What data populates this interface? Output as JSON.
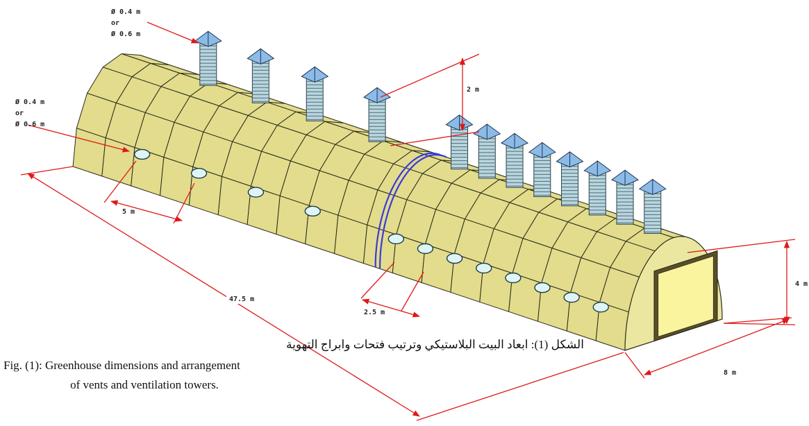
{
  "annotations": {
    "tower_diameter": {
      "line1": "Ø 0.4 m",
      "line2": "or",
      "line3": "Ø 0.6 m"
    },
    "side_vent_diameter": {
      "line1": "Ø 0.4 m",
      "line2": "or",
      "line3": "Ø 0.6 m"
    },
    "tower_height": "2 m",
    "tower_spacing": "5 m",
    "length": "47.5 m",
    "side_vent_spacing": "2.5 m",
    "height": "4 m",
    "width": "8 m"
  },
  "caption": {
    "arabic": "الشكل (1): ابعاد البيت البلاستيكي وترتيب فتحات وابراج التهوية",
    "english_line1": "Fig. (1): Greenhouse dimensions and arrangement",
    "english_line2": "of vents and ventilation towers."
  }
}
